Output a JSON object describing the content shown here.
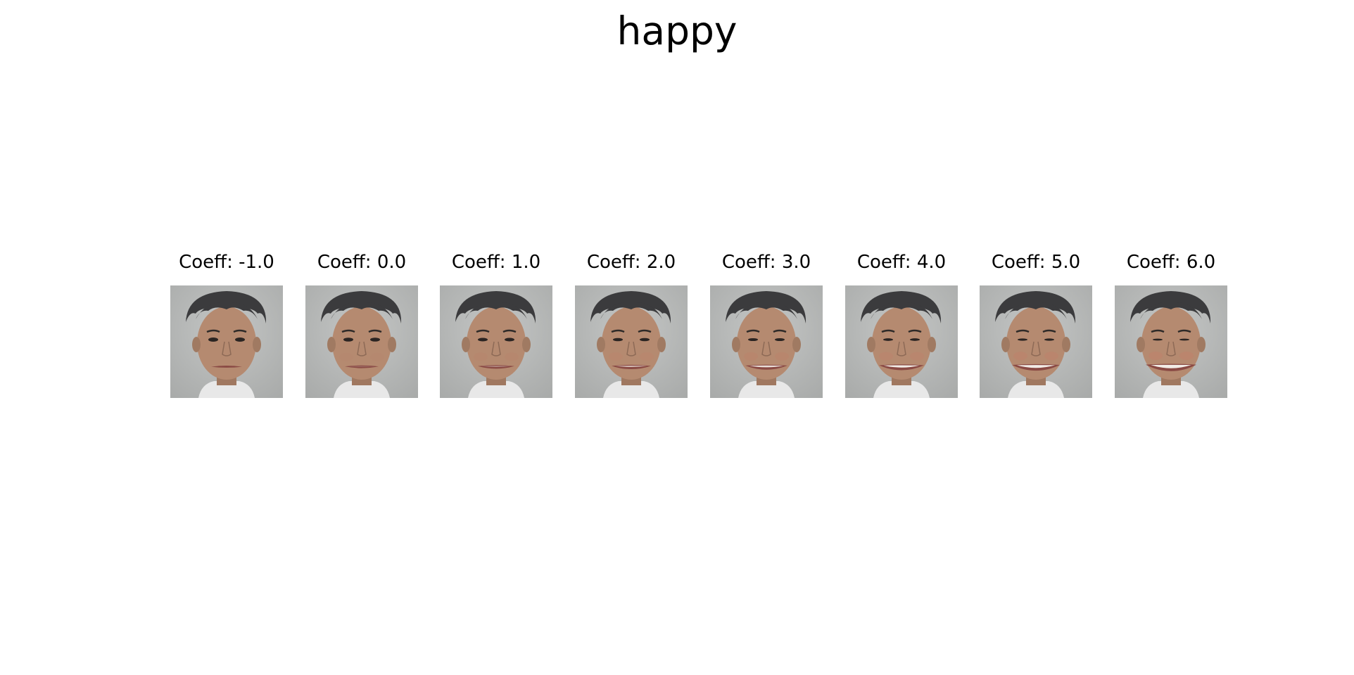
{
  "title": "happy",
  "panels": [
    {
      "label": "Coeff: -1.0",
      "smile": -1.0
    },
    {
      "label": "Coeff: 0.0",
      "smile": 0.0
    },
    {
      "label": "Coeff: 1.0",
      "smile": 1.0
    },
    {
      "label": "Coeff: 2.0",
      "smile": 2.0
    },
    {
      "label": "Coeff: 3.0",
      "smile": 3.0
    },
    {
      "label": "Coeff: 4.0",
      "smile": 4.0
    },
    {
      "label": "Coeff: 5.0",
      "smile": 5.0
    },
    {
      "label": "Coeff: 6.0",
      "smile": 6.0
    }
  ],
  "colors": {
    "background": "#ffffff",
    "photo_background": "#a9abaa",
    "hair": "#3b3b3d",
    "skin": "#b58a70",
    "shirt": "#e8e8e8",
    "lips": "#8a4a44",
    "teeth": "#f2ece6"
  }
}
